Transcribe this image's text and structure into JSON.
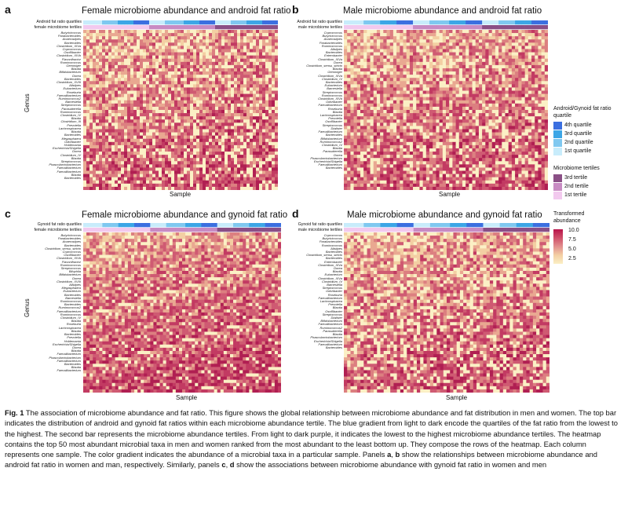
{
  "panels": [
    {
      "id": "a",
      "title": "Female microbiome abundance and android fat ratio",
      "bar_labels": [
        "Android fat ratio quartiles",
        "female microbiome tertiles"
      ]
    },
    {
      "id": "b",
      "title": "Male microbiome abundance and android fat ratio",
      "bar_labels": [
        "Android fat ratio quartiles",
        "male microbiome tertiles"
      ]
    },
    {
      "id": "c",
      "title": "Female microbiome abundance and gynoid fat ratio",
      "bar_labels": [
        "Gynoid fat ratio quartiles",
        "female microbiome tertiles"
      ]
    },
    {
      "id": "d",
      "title": "Male microbiome abundance and gynoid fat ratio",
      "bar_labels": [
        "Gynoid fat ratio quartiles",
        "male microbiome tertiles"
      ]
    }
  ],
  "axis": {
    "ylabel": "Genus",
    "xlabel": "Sample"
  },
  "genera_female_android": [
    "Butyricicoccus",
    "Parabacteroides",
    "Anaerostipes",
    "Bacteroides",
    "Clostridium_XIVa",
    "Coprococcus",
    "Oscillibacter",
    "Clostridium_XIVb",
    "Flavonifractor",
    "Ruminococcus",
    "Gemmiger",
    "Blautia",
    "Bifidobacterium",
    "Dorea",
    "Bacteroides",
    "Clostridium_XVIII",
    "Alistipes",
    "Eubacterium",
    "Roseburia",
    "Faecalibacterium",
    "Ruminococcus2",
    "Barnesiella",
    "Streptococcus",
    "Parasutterella",
    "Ruminococcus",
    "Clostridium_IV",
    "Blautia",
    "Clostridium_III",
    "Prevotella",
    "Lachnospiracea",
    "Blautia",
    "Bacteroides",
    "Megasphaera",
    "Odoribacter",
    "Holdemania",
    "Escherichia/Shigella",
    "Dorea",
    "Clostridium_IV",
    "Blautia",
    "Streptococcus",
    "Phascolarctobacterium",
    "Faecalibacterium",
    "Faecalibacterium",
    "Blautia",
    "Bacteroides"
  ],
  "genera_male_android": [
    "Coprococcus",
    "Butyricicoccus",
    "Anaerostipes",
    "Parabacteroides",
    "Ruminococcus",
    "Alistipes",
    "Bacteroides",
    "Enterobacter",
    "Clostridium_XIVa",
    "Dorea",
    "Clostridium_sensu_stricto",
    "Blautia",
    "Gemmiger",
    "Clostridium_XIVa",
    "Clostridium_IV",
    "Bacteroides",
    "Eubacterium",
    "Barnesiella",
    "Streptococcus",
    "Ruminococcus",
    "Clostridium_XIVb",
    "Odoribacter",
    "Faecalibacterium",
    "Roseburia",
    "Blautia",
    "Lachnospiracea",
    "Prevotella",
    "Oscillibacter",
    "Streptococcus",
    "Dialister",
    "Faecalibacterium",
    "Bacteroides",
    "Bifidobacterium",
    "Ruminococcus2",
    "Clostridium_IV",
    "Blautia",
    "Parasutterella",
    "Dorea",
    "Phascolarctobacterium",
    "Escherichia/Shigella",
    "Faecalibacterium",
    "Bacteroides"
  ],
  "genera_female_gynoid": [
    "Butyricicoccus",
    "Parabacteroides",
    "Anaerostipes",
    "Bacteroides",
    "Clostridium_sensu_stricto",
    "Coprococcus",
    "Oscillibacter",
    "Clostridium_XIVb",
    "Flavonifractor",
    "Ruminococcus",
    "Streptococcus",
    "Bilophila",
    "Bifidobacterium",
    "Dorea",
    "Clostridium_XVIII",
    "Alistipes",
    "Megasphaera",
    "Eubacterium",
    "Bacteroides",
    "Barnesiella",
    "Ruminococcus",
    "Bacteroides",
    "Ruminococcus2",
    "Faecalibacterium",
    "Ruminococcus",
    "Clostridium_IV",
    "Blautia",
    "Roseburia",
    "Lachnospiracea",
    "Blautia",
    "Bacteroides",
    "Prevotella",
    "Holdemania",
    "Escherichia/Shigella",
    "Dorea",
    "Blautia",
    "Faecalibacterium",
    "Phascolarctobacterium",
    "Faecalibacterium",
    "Bacteroides",
    "Blautia",
    "Faecalibacterium"
  ],
  "genera_male_gynoid": [
    "Coprococcus",
    "Butyricicoccus",
    "Parabacteroides",
    "Ruminococcus",
    "Alistipes",
    "Bacteroides",
    "Clostridium_sensu_stricto",
    "Bacteroides",
    "Enterobacter",
    "Clostridium_XIVa",
    "Dorea",
    "Blautia",
    "Eubacterium",
    "Clostridium_XIVa",
    "Clostridium_IV",
    "Barnesiella",
    "Streptococcus",
    "Odoribacter",
    "Roseburia",
    "Faecalibacterium",
    "Lachnospiracea",
    "Prevotella",
    "Blautia",
    "Oscillibacter",
    "Streptococcus",
    "Dialister",
    "Bifidobacterium",
    "Faecalibacterium",
    "Ruminococcus2",
    "Parasutterella",
    "Blautia",
    "Phascolarctobacterium",
    "Escherichia/Shigella",
    "Faecalibacterium",
    "Bacteroides"
  ],
  "legend": {
    "quartile_title": "Android/Gynoid fat ratio quartile",
    "quartiles": [
      {
        "label": "4th quartile",
        "color": "#3b6fe0"
      },
      {
        "label": "3rd quartile",
        "color": "#3ca6e6"
      },
      {
        "label": "2nd quartile",
        "color": "#7fc8f0"
      },
      {
        "label": "1st quartile",
        "color": "#c8ecfb"
      }
    ],
    "tertile_title": "Microbiome tertiles",
    "tertiles": [
      {
        "label": "3rd tertile",
        "color": "#8a4f86"
      },
      {
        "label": "2nd tertile",
        "color": "#c88bc3"
      },
      {
        "label": "1st tertile",
        "color": "#f2c9ee"
      }
    ],
    "abundance_title": "Transformed abundance",
    "abundance_ticks": [
      "10.0",
      "7.5",
      "5.0",
      "2.5"
    ]
  },
  "chart_data": [
    {
      "type": "heatmap",
      "title": "Female microbiome abundance and android fat ratio",
      "xlabel": "Sample",
      "ylabel": "Genus",
      "color_range": [
        2.5,
        10.0
      ]
    },
    {
      "type": "heatmap",
      "title": "Male microbiome abundance and android fat ratio",
      "xlabel": "Sample",
      "ylabel": "Genus",
      "color_range": [
        2.5,
        10.0
      ]
    },
    {
      "type": "heatmap",
      "title": "Female microbiome abundance and gynoid fat ratio",
      "xlabel": "Sample",
      "ylabel": "Genus",
      "color_range": [
        2.5,
        10.0
      ]
    },
    {
      "type": "heatmap",
      "title": "Male microbiome abundance and gynoid fat ratio",
      "xlabel": "Sample",
      "ylabel": "Genus",
      "color_range": [
        2.5,
        10.0
      ]
    }
  ],
  "caption": {
    "fig": "Fig. 1",
    "text": " The association of microbiome abundance and fat ratio. This figure shows the global relationship between microbiome abundance and fat distribution in men and women. The top bar indicates the distribution of android and gynoid fat ratios within each microbiome abundance tertile. The blue gradient from light to dark encode the quartiles of the fat ratio from the lowest to the highest. The second bar represents the microbiome abundance tertiles. From light to dark purple, it indicates the lowest to the highest microbiome abundance tertiles. The heatmap contains the top 50 most abundant microbial  taxa in men and women ranked from the most abundant to the least bottom up. They compose the rows of the heatmap. Each column represents one sample. The color gradient indicates the abundance of a microbial  taxa in a particular sample. Panels ",
    "ab_a": "a",
    "ab_sep": ", ",
    "ab_b": "b",
    "mid": " show the relationships between microbiome abundance and android fat ratio in women and man, respectively. Similarly, panels ",
    "cd_c": "c",
    "cd_d": "d",
    "end": " show the associations between microbiome abundance with gynoid fat ratio in women and men"
  }
}
